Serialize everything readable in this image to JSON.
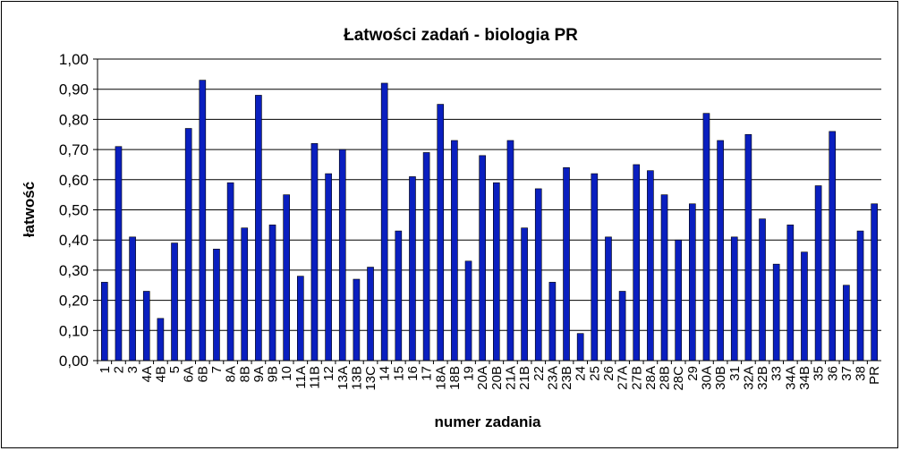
{
  "chart_data": {
    "type": "bar",
    "title": "Łatwości zadań - biologia PR",
    "xlabel": "numer zadania",
    "ylabel": "łatwość",
    "ylim": [
      0,
      1
    ],
    "yticks": [
      "0,00",
      "0,10",
      "0,20",
      "0,30",
      "0,40",
      "0,50",
      "0,60",
      "0,70",
      "0,80",
      "0,90",
      "1,00"
    ],
    "grid": true,
    "legend": "none",
    "bar_color": "#0A1FBF",
    "categories": [
      "1",
      "2",
      "3",
      "4A",
      "4B",
      "5",
      "6A",
      "6B",
      "7",
      "8A",
      "8B",
      "9A",
      "9B",
      "10",
      "11A",
      "11B",
      "12",
      "13A",
      "13B",
      "13C",
      "14",
      "15",
      "16",
      "17",
      "18A",
      "18B",
      "19",
      "20A",
      "20B",
      "21A",
      "21B",
      "22",
      "23A",
      "23B",
      "24",
      "25",
      "26",
      "27A",
      "27B",
      "28A",
      "28B",
      "28C",
      "29",
      "30A",
      "30B",
      "31",
      "32A",
      "32B",
      "33",
      "34A",
      "34B",
      "35",
      "36",
      "37",
      "38",
      "PR"
    ],
    "values": [
      0.26,
      0.71,
      0.41,
      0.23,
      0.14,
      0.39,
      0.77,
      0.93,
      0.37,
      0.59,
      0.44,
      0.88,
      0.45,
      0.55,
      0.28,
      0.72,
      0.62,
      0.7,
      0.27,
      0.31,
      0.92,
      0.43,
      0.61,
      0.69,
      0.85,
      0.73,
      0.33,
      0.68,
      0.59,
      0.73,
      0.44,
      0.57,
      0.26,
      0.64,
      0.09,
      0.62,
      0.41,
      0.23,
      0.65,
      0.63,
      0.55,
      0.4,
      0.52,
      0.82,
      0.73,
      0.41,
      0.75,
      0.47,
      0.32,
      0.45,
      0.36,
      0.58,
      0.76,
      0.25,
      0.43,
      0.52
    ]
  }
}
